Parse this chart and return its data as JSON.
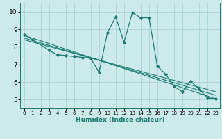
{
  "xlabel": "Humidex (Indice chaleur)",
  "ylabel": "",
  "bg_color": "#cceaea",
  "grid_color": "#aad4d4",
  "line_color": "#1a7a6e",
  "xlim": [
    -0.5,
    23.5
  ],
  "ylim": [
    4.5,
    10.5
  ],
  "xticks": [
    0,
    1,
    2,
    3,
    4,
    5,
    6,
    7,
    8,
    9,
    10,
    11,
    12,
    13,
    14,
    15,
    16,
    17,
    18,
    19,
    20,
    21,
    22,
    23
  ],
  "yticks": [
    5,
    6,
    7,
    8,
    9,
    10
  ],
  "series": [
    [
      0,
      8.7
    ],
    [
      1,
      8.4
    ],
    [
      3,
      7.8
    ],
    [
      4,
      7.55
    ],
    [
      5,
      7.5
    ],
    [
      6,
      7.45
    ],
    [
      7,
      7.4
    ],
    [
      8,
      7.35
    ],
    [
      9,
      6.55
    ],
    [
      10,
      8.8
    ],
    [
      11,
      9.7
    ],
    [
      12,
      8.25
    ],
    [
      13,
      9.95
    ],
    [
      14,
      9.65
    ],
    [
      15,
      9.65
    ],
    [
      16,
      6.9
    ],
    [
      17,
      6.45
    ],
    [
      18,
      5.75
    ],
    [
      19,
      5.45
    ],
    [
      20,
      6.05
    ],
    [
      21,
      5.6
    ],
    [
      22,
      5.1
    ],
    [
      23,
      5.05
    ]
  ],
  "regression_lines": [
    {
      "start_x": 0,
      "start_y": 8.65,
      "end_x": 23,
      "end_y": 5.05
    },
    {
      "start_x": 0,
      "start_y": 8.5,
      "end_x": 23,
      "end_y": 5.25
    },
    {
      "start_x": 0,
      "start_y": 8.4,
      "end_x": 23,
      "end_y": 5.45
    }
  ]
}
